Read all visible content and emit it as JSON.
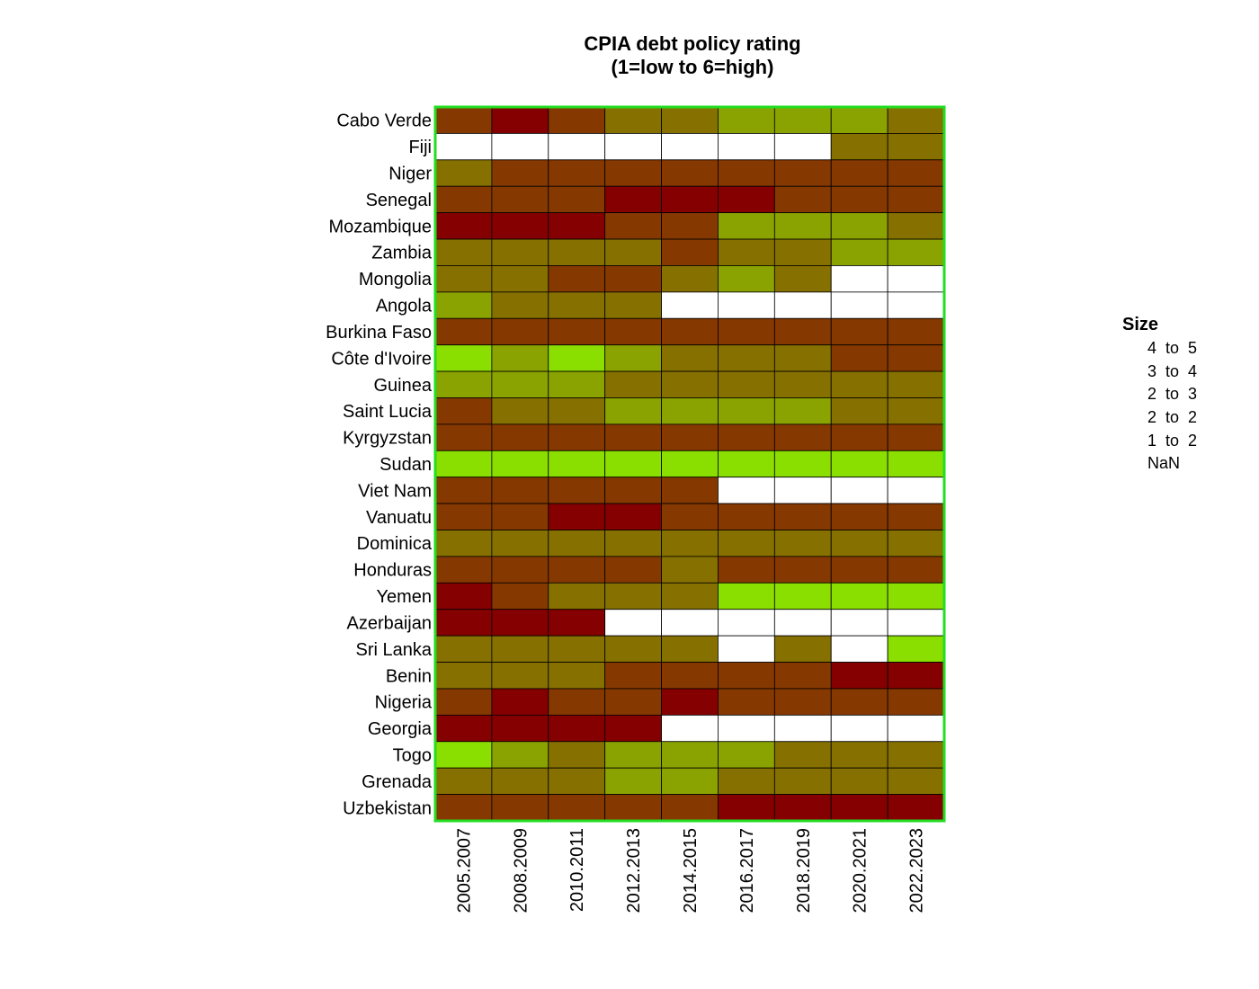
{
  "chart_data": {
    "type": "heatmap",
    "title": "CPIA debt policy rating",
    "subtitle": "(1=low to 6=high)",
    "x_categories": [
      "2005.2007",
      "2008.2009",
      "2010.2011",
      "2012.2013",
      "2014.2015",
      "2016.2017",
      "2018.2019",
      "2020.2021",
      "2022.2023"
    ],
    "y_categories": [
      "Cabo Verde",
      "Fiji",
      "Niger",
      "Senegal",
      "Mozambique",
      "Zambia",
      "Mongolia",
      "Angola",
      "Burkina Faso",
      "Côte d'Ivoire",
      "Guinea",
      "Saint Lucia",
      "Kyrgyzstan",
      "Sudan",
      "Viet Nam",
      "Vanuatu",
      "Dominica",
      "Honduras",
      "Yemen",
      "Azerbaijan",
      "Sri Lanka",
      "Benin",
      "Nigeria",
      "Georgia",
      "Togo",
      "Grenada",
      "Uzbekistan"
    ],
    "values": [
      [
        4.5,
        5,
        4.5,
        4,
        4,
        3.5,
        3.5,
        3.5,
        4
      ],
      [
        null,
        null,
        null,
        null,
        null,
        null,
        null,
        4,
        4
      ],
      [
        4,
        4.5,
        4.5,
        4.5,
        4.5,
        4.5,
        4.5,
        4.5,
        4.5
      ],
      [
        4.5,
        4.5,
        4.5,
        5,
        5,
        5,
        4.5,
        4.5,
        4.5
      ],
      [
        5,
        5,
        5,
        4.5,
        4.5,
        3.5,
        3.5,
        3.5,
        4
      ],
      [
        4,
        4,
        4,
        4,
        4.5,
        4,
        4,
        3.5,
        3.5
      ],
      [
        4,
        4,
        4.5,
        4.5,
        4,
        3.5,
        4,
        null,
        null
      ],
      [
        3.5,
        4,
        4,
        4,
        null,
        null,
        null,
        null,
        null
      ],
      [
        4.5,
        4.5,
        4.5,
        4.5,
        4.5,
        4.5,
        4.5,
        4.5,
        4.5
      ],
      [
        3,
        3.5,
        3,
        3.5,
        4,
        4,
        4,
        4.5,
        4.5
      ],
      [
        3.5,
        3.5,
        3.5,
        4,
        4,
        4,
        4,
        4,
        4
      ],
      [
        4.5,
        4,
        4,
        3.5,
        3.5,
        3.5,
        3.5,
        4,
        4
      ],
      [
        4.5,
        4.5,
        4.5,
        4.5,
        4.5,
        4.5,
        4.5,
        4.5,
        4.5
      ],
      [
        3,
        3,
        3,
        3,
        3,
        3,
        3,
        3,
        3
      ],
      [
        4.5,
        4.5,
        4.5,
        4.5,
        4.5,
        null,
        null,
        null,
        null
      ],
      [
        4.5,
        4.5,
        5,
        5,
        4.5,
        4.5,
        4.5,
        4.5,
        4.5
      ],
      [
        4,
        4,
        4,
        4,
        4,
        4,
        4,
        4,
        4
      ],
      [
        4.5,
        4.5,
        4.5,
        4.5,
        4,
        4.5,
        4.5,
        4.5,
        4.5
      ],
      [
        5,
        4.5,
        4,
        4,
        4,
        3,
        3,
        3,
        3
      ],
      [
        5,
        5,
        5,
        null,
        null,
        null,
        null,
        null,
        null
      ],
      [
        4,
        4,
        4,
        4,
        4,
        null,
        4,
        null,
        3
      ],
      [
        4,
        4,
        4,
        4.5,
        4.5,
        4.5,
        4.5,
        5,
        5
      ],
      [
        4.5,
        5,
        4.5,
        4.5,
        5,
        4.5,
        4.5,
        4.5,
        4.5
      ],
      [
        5,
        5,
        5,
        5,
        null,
        null,
        null,
        null,
        null
      ],
      [
        3,
        3.5,
        4,
        3.5,
        3.5,
        3.5,
        4,
        4,
        4
      ],
      [
        4,
        4,
        4,
        3.5,
        3.5,
        4,
        4,
        4,
        4
      ],
      [
        4.5,
        4.5,
        4.5,
        4.5,
        4.5,
        5,
        5,
        5,
        5
      ]
    ],
    "color_scale": {
      "3": "#8ade00",
      "3.5": "#8aa300",
      "4": "#857000",
      "4.5": "#853800",
      "5": "#850000",
      "missing": "#ffffff"
    },
    "border_color": "#22dd22",
    "legend": {
      "title": "Size",
      "position": "right",
      "items": [
        "4  to  5",
        "3  to  4",
        "2  to  3",
        "2  to  2",
        "1  to  2",
        "NaN"
      ]
    }
  }
}
